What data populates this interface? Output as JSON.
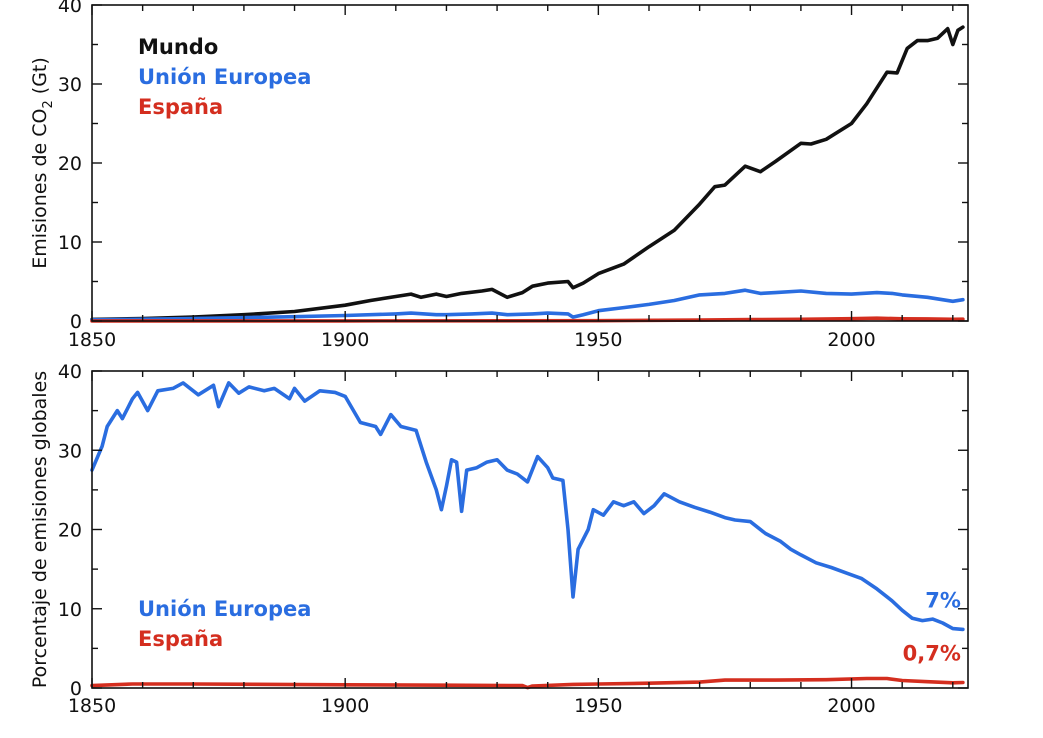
{
  "chart_data": [
    {
      "type": "line",
      "ylabel_prefix": "Emisiones de CO",
      "ylabel_sub": "2",
      "ylabel_suffix": " (Gt)",
      "xlim": [
        1850,
        2023
      ],
      "ylim": [
        0,
        40
      ],
      "x_ticks": [
        1850,
        1900,
        1950,
        2000
      ],
      "y_ticks": [
        0,
        10,
        20,
        30,
        40
      ],
      "legend_placement": "top-left",
      "series": [
        {
          "name": "Mundo",
          "color": "#111111",
          "points": [
            [
              1850,
              0.2
            ],
            [
              1860,
              0.3
            ],
            [
              1870,
              0.5
            ],
            [
              1880,
              0.8
            ],
            [
              1890,
              1.2
            ],
            [
              1900,
              2.0
            ],
            [
              1905,
              2.6
            ],
            [
              1910,
              3.1
            ],
            [
              1913,
              3.4
            ],
            [
              1915,
              3.0
            ],
            [
              1918,
              3.4
            ],
            [
              1920,
              3.1
            ],
            [
              1923,
              3.5
            ],
            [
              1927,
              3.8
            ],
            [
              1929,
              4.0
            ],
            [
              1932,
              3.0
            ],
            [
              1935,
              3.6
            ],
            [
              1937,
              4.4
            ],
            [
              1940,
              4.8
            ],
            [
              1944,
              5.0
            ],
            [
              1945,
              4.2
            ],
            [
              1947,
              4.8
            ],
            [
              1950,
              6.0
            ],
            [
              1955,
              7.2
            ],
            [
              1960,
              9.4
            ],
            [
              1965,
              11.5
            ],
            [
              1970,
              14.8
            ],
            [
              1973,
              17.0
            ],
            [
              1975,
              17.2
            ],
            [
              1979,
              19.6
            ],
            [
              1982,
              18.9
            ],
            [
              1985,
              20.2
            ],
            [
              1990,
              22.5
            ],
            [
              1992,
              22.4
            ],
            [
              1995,
              23.0
            ],
            [
              2000,
              25.0
            ],
            [
              2003,
              27.5
            ],
            [
              2007,
              31.5
            ],
            [
              2009,
              31.4
            ],
            [
              2011,
              34.5
            ],
            [
              2013,
              35.5
            ],
            [
              2015,
              35.5
            ],
            [
              2017,
              35.8
            ],
            [
              2019,
              37.0
            ],
            [
              2020,
              35.0
            ],
            [
              2021,
              36.8
            ],
            [
              2022,
              37.2
            ]
          ]
        },
        {
          "name": "Unión Europea",
          "color": "#2a6de0",
          "points": [
            [
              1850,
              0.15
            ],
            [
              1870,
              0.3
            ],
            [
              1890,
              0.55
            ],
            [
              1900,
              0.7
            ],
            [
              1910,
              0.9
            ],
            [
              1913,
              1.0
            ],
            [
              1918,
              0.8
            ],
            [
              1920,
              0.8
            ],
            [
              1925,
              0.9
            ],
            [
              1929,
              1.0
            ],
            [
              1932,
              0.8
            ],
            [
              1937,
              0.9
            ],
            [
              1940,
              1.0
            ],
            [
              1944,
              0.9
            ],
            [
              1945,
              0.5
            ],
            [
              1947,
              0.8
            ],
            [
              1950,
              1.3
            ],
            [
              1955,
              1.7
            ],
            [
              1960,
              2.1
            ],
            [
              1965,
              2.6
            ],
            [
              1970,
              3.3
            ],
            [
              1975,
              3.5
            ],
            [
              1979,
              3.9
            ],
            [
              1982,
              3.5
            ],
            [
              1985,
              3.6
            ],
            [
              1990,
              3.8
            ],
            [
              1995,
              3.5
            ],
            [
              2000,
              3.4
            ],
            [
              2005,
              3.6
            ],
            [
              2008,
              3.5
            ],
            [
              2010,
              3.3
            ],
            [
              2015,
              3.0
            ],
            [
              2020,
              2.5
            ],
            [
              2022,
              2.7
            ]
          ]
        },
        {
          "name": "España",
          "color": "#d42e1f",
          "points": [
            [
              1850,
              0.0
            ],
            [
              1900,
              0.01
            ],
            [
              1950,
              0.04
            ],
            [
              1970,
              0.12
            ],
            [
              1980,
              0.18
            ],
            [
              1990,
              0.21
            ],
            [
              2000,
              0.29
            ],
            [
              2005,
              0.35
            ],
            [
              2010,
              0.28
            ],
            [
              2015,
              0.26
            ],
            [
              2020,
              0.21
            ],
            [
              2022,
              0.23
            ]
          ]
        }
      ]
    },
    {
      "type": "line",
      "ylabel": "Porcentaje de emisiones globales",
      "xlim": [
        1850,
        2023
      ],
      "ylim": [
        0,
        40
      ],
      "x_ticks": [
        1850,
        1900,
        1950,
        2000
      ],
      "y_ticks": [
        0,
        10,
        20,
        30,
        40
      ],
      "legend_placement": "bottom-left",
      "series": [
        {
          "name": "Unión Europea",
          "color": "#2a6de0",
          "end_label": "7%",
          "points": [
            [
              1850,
              27.5
            ],
            [
              1852,
              30.5
            ],
            [
              1853,
              33.0
            ],
            [
              1855,
              35.0
            ],
            [
              1856,
              34.0
            ],
            [
              1858,
              36.5
            ],
            [
              1859,
              37.3
            ],
            [
              1861,
              35.0
            ],
            [
              1863,
              37.5
            ],
            [
              1866,
              37.8
            ],
            [
              1868,
              38.5
            ],
            [
              1871,
              37.0
            ],
            [
              1874,
              38.2
            ],
            [
              1875,
              35.5
            ],
            [
              1877,
              38.5
            ],
            [
              1879,
              37.2
            ],
            [
              1881,
              38.0
            ],
            [
              1884,
              37.5
            ],
            [
              1886,
              37.8
            ],
            [
              1889,
              36.5
            ],
            [
              1890,
              37.8
            ],
            [
              1892,
              36.2
            ],
            [
              1895,
              37.5
            ],
            [
              1898,
              37.3
            ],
            [
              1900,
              36.8
            ],
            [
              1903,
              33.5
            ],
            [
              1906,
              33.0
            ],
            [
              1907,
              32.0
            ],
            [
              1909,
              34.5
            ],
            [
              1911,
              33.0
            ],
            [
              1914,
              32.5
            ],
            [
              1916,
              28.5
            ],
            [
              1918,
              25.0
            ],
            [
              1919,
              22.5
            ],
            [
              1920,
              25.5
            ],
            [
              1921,
              28.8
            ],
            [
              1922,
              28.5
            ],
            [
              1923,
              22.3
            ],
            [
              1924,
              27.5
            ],
            [
              1926,
              27.8
            ],
            [
              1928,
              28.5
            ],
            [
              1930,
              28.8
            ],
            [
              1932,
              27.5
            ],
            [
              1934,
              27.0
            ],
            [
              1936,
              26.0
            ],
            [
              1938,
              29.2
            ],
            [
              1940,
              27.8
            ],
            [
              1941,
              26.5
            ],
            [
              1943,
              26.2
            ],
            [
              1944,
              20.0
            ],
            [
              1945,
              11.5
            ],
            [
              1946,
              17.5
            ],
            [
              1948,
              20.0
            ],
            [
              1949,
              22.5
            ],
            [
              1951,
              21.8
            ],
            [
              1953,
              23.5
            ],
            [
              1955,
              23.0
            ],
            [
              1957,
              23.5
            ],
            [
              1959,
              22.0
            ],
            [
              1961,
              23.0
            ],
            [
              1963,
              24.5
            ],
            [
              1966,
              23.5
            ],
            [
              1969,
              22.8
            ],
            [
              1972,
              22.2
            ],
            [
              1975,
              21.5
            ],
            [
              1977,
              21.2
            ],
            [
              1980,
              21.0
            ],
            [
              1983,
              19.5
            ],
            [
              1986,
              18.5
            ],
            [
              1988,
              17.5
            ],
            [
              1990,
              16.8
            ],
            [
              1993,
              15.8
            ],
            [
              1996,
              15.2
            ],
            [
              1999,
              14.5
            ],
            [
              2002,
              13.8
            ],
            [
              2005,
              12.5
            ],
            [
              2008,
              11.0
            ],
            [
              2010,
              9.8
            ],
            [
              2012,
              8.8
            ],
            [
              2014,
              8.5
            ],
            [
              2016,
              8.7
            ],
            [
              2018,
              8.2
            ],
            [
              2020,
              7.5
            ],
            [
              2022,
              7.4
            ]
          ]
        },
        {
          "name": "España",
          "color": "#d42e1f",
          "end_label": "0,7%",
          "points": [
            [
              1850,
              0.3
            ],
            [
              1858,
              0.5
            ],
            [
              1870,
              0.5
            ],
            [
              1900,
              0.4
            ],
            [
              1920,
              0.35
            ],
            [
              1935,
              0.3
            ],
            [
              1936,
              0.05
            ],
            [
              1937,
              0.25
            ],
            [
              1945,
              0.45
            ],
            [
              1950,
              0.5
            ],
            [
              1960,
              0.6
            ],
            [
              1970,
              0.75
            ],
            [
              1975,
              1.0
            ],
            [
              1985,
              1.0
            ],
            [
              1995,
              1.05
            ],
            [
              2003,
              1.2
            ],
            [
              2007,
              1.2
            ],
            [
              2010,
              0.95
            ],
            [
              2015,
              0.8
            ],
            [
              2020,
              0.65
            ],
            [
              2022,
              0.7
            ]
          ]
        }
      ]
    }
  ]
}
